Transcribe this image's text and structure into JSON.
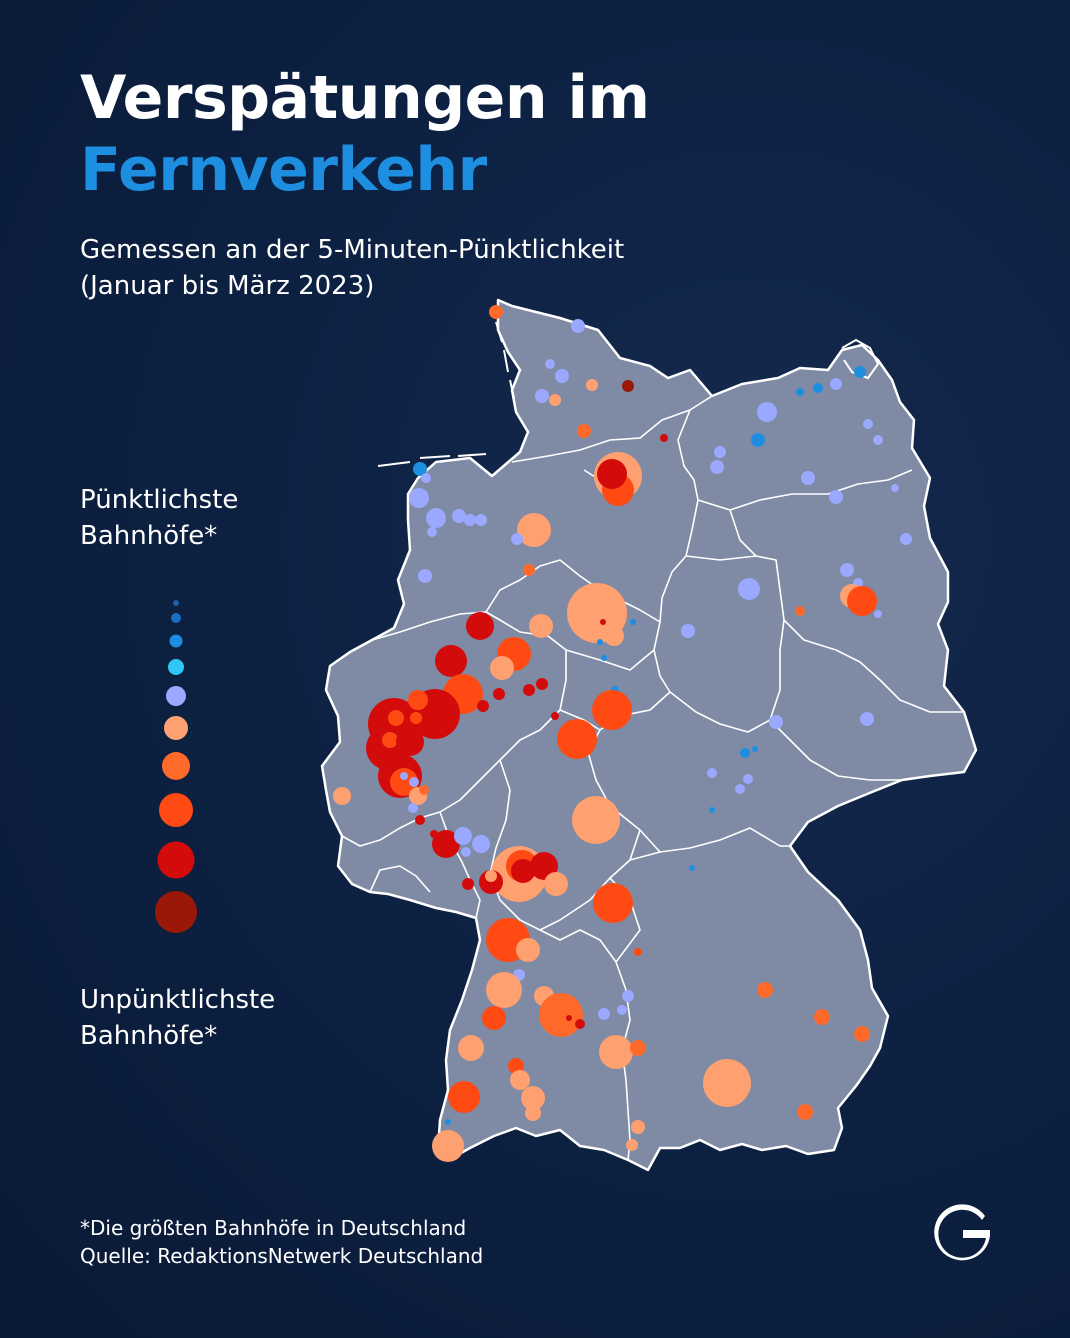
{
  "title": {
    "line1": "Verspätungen im",
    "line2": "Fernverkehr"
  },
  "subtitle": {
    "line1": "Gemessen an der 5-Minuten-Pünktlichkeit",
    "line2": "(Januar bis März 2023)"
  },
  "legend": {
    "top_line1": "Pünktlichste",
    "top_line2": "Bahnhöfe*",
    "bottom_line1": "Unpünktlichste",
    "bottom_line2": "Bahnhöfe*",
    "scale_colors": [
      "#1a5fa8",
      "#1a6fc0",
      "#1e8fe0",
      "#2ec7f4",
      "#9aa8ff",
      "#ffa070",
      "#ff6a2a",
      "#ff4a14",
      "#d40b0b",
      "#9a1808"
    ]
  },
  "colors": {
    "background": "#0d2143",
    "land": "#7f8aa5",
    "border": "#ffffff",
    "title_accent": "#1e8fe0"
  },
  "footer": {
    "note": "*Die größten Bahnhöfe in Deutschland",
    "source": "Quelle: RedaktionsNetwerk Deutschland"
  },
  "logo": {
    "letter": "G"
  }
}
